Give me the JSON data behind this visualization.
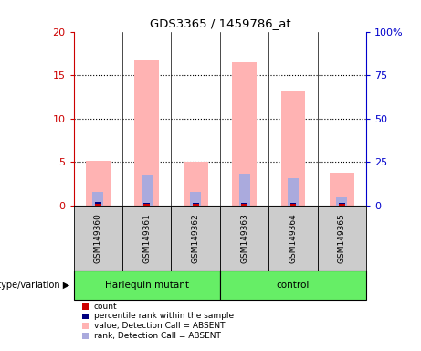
{
  "title": "GDS3365 / 1459786_at",
  "samples": [
    "GSM149360",
    "GSM149361",
    "GSM149362",
    "GSM149363",
    "GSM149364",
    "GSM149365"
  ],
  "pink_values": [
    5.1,
    16.7,
    5.0,
    16.5,
    13.1,
    3.7
  ],
  "blue_values": [
    1.5,
    3.5,
    1.5,
    3.6,
    3.1,
    1.0
  ],
  "red_values": [
    0.18,
    0.12,
    0.12,
    0.12,
    0.12,
    0.12
  ],
  "dark_blue_values": [
    0.18,
    0.12,
    0.12,
    0.12,
    0.12,
    0.12
  ],
  "ylim_left": [
    0,
    20
  ],
  "ylim_right": [
    0,
    100
  ],
  "yticks_left": [
    0,
    5,
    10,
    15,
    20
  ],
  "yticks_right": [
    0,
    25,
    50,
    75,
    100
  ],
  "ytick_labels_left": [
    "0",
    "5",
    "10",
    "15",
    "20"
  ],
  "ytick_labels_right": [
    "0",
    "25",
    "50",
    "75",
    "100%"
  ],
  "left_tick_color": "#cc0000",
  "right_tick_color": "#0000cc",
  "pink_color": "#ffb3b3",
  "blue_color": "#aaaadd",
  "red_color": "#cc0000",
  "dark_blue_color": "#000080",
  "plot_bg": "#ffffff",
  "sample_box_color": "#cccccc",
  "group1_label": "Harlequin mutant",
  "group2_label": "control",
  "group_color": "#66ee66",
  "legend_items": [
    {
      "label": "count",
      "color": "#cc0000"
    },
    {
      "label": "percentile rank within the sample",
      "color": "#000080"
    },
    {
      "label": "value, Detection Call = ABSENT",
      "color": "#ffb3b3"
    },
    {
      "label": "rank, Detection Call = ABSENT",
      "color": "#aaaadd"
    }
  ],
  "genotype_label": "genotype/variation"
}
